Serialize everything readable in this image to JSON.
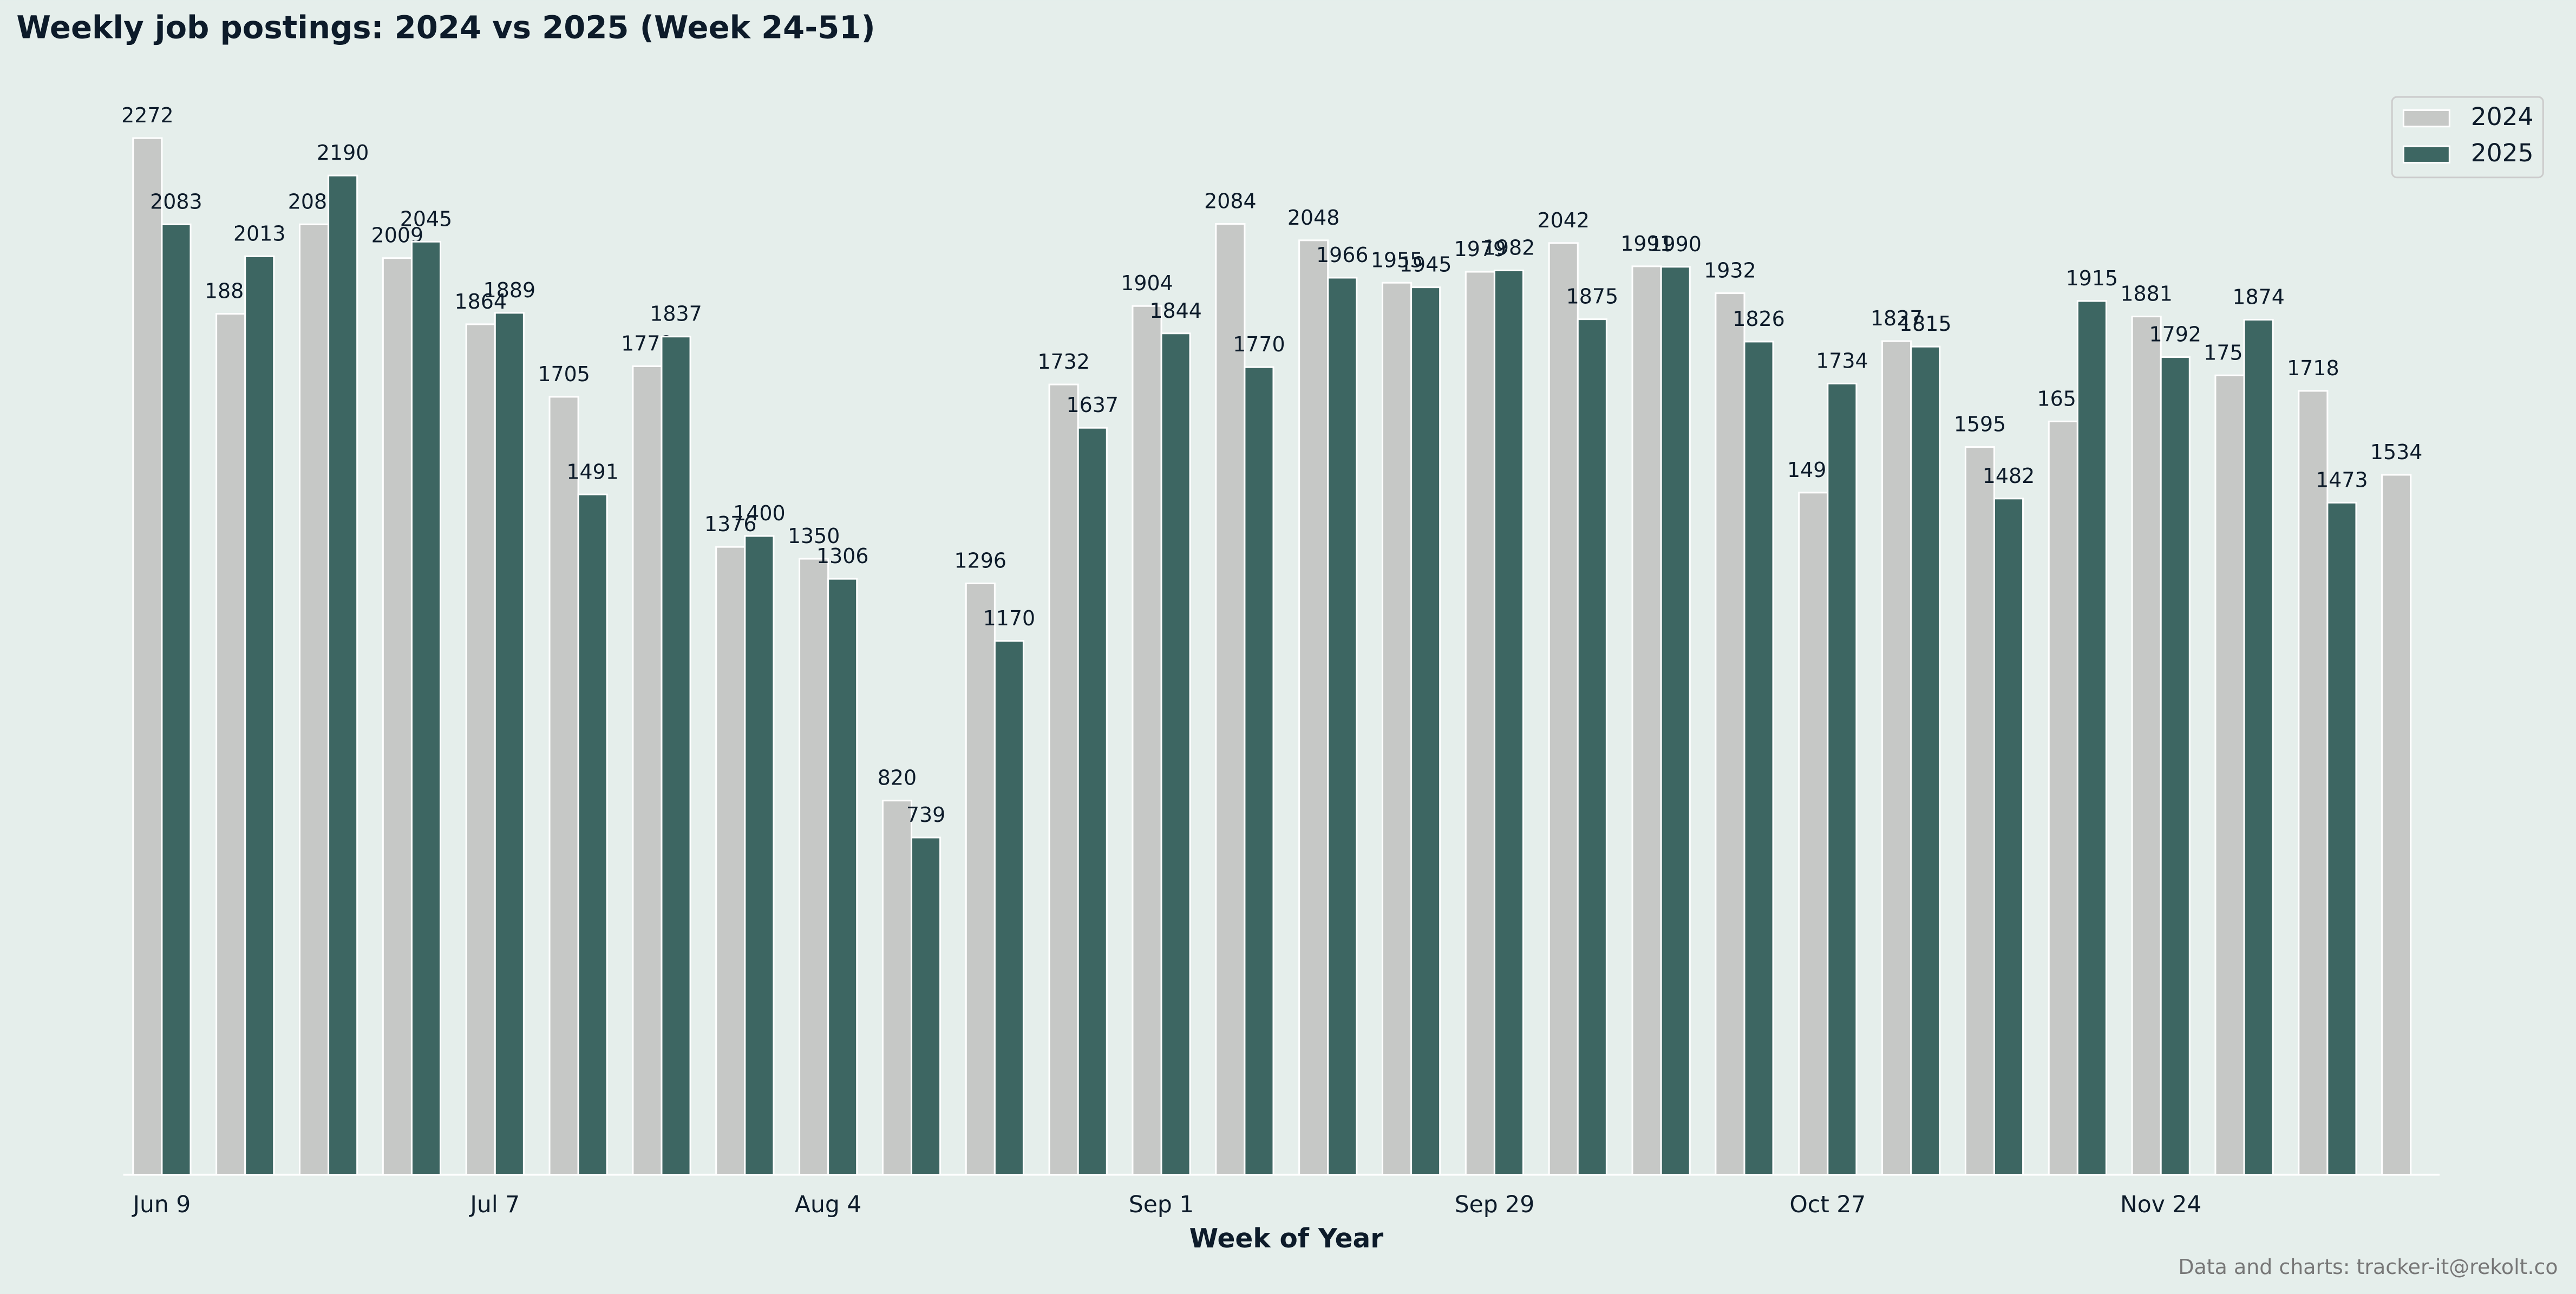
{
  "chart_data": {
    "type": "bar",
    "title": "Weekly job postings: 2024 vs 2025 (Week 24-51)",
    "x_label": "Week of Year",
    "footer": "Data and charts: tracker-it@rekolt.co",
    "categories": [
      "Jun 9",
      null,
      null,
      null,
      "Jul 7",
      null,
      null,
      null,
      "Aug 4",
      null,
      null,
      null,
      "Sep 1",
      null,
      null,
      null,
      "Sep 29",
      null,
      null,
      null,
      "Oct 27",
      null,
      null,
      null,
      "Nov 24",
      null,
      null,
      null
    ],
    "series": [
      {
        "name": "2024",
        "color": "#c6c8c6",
        "values": [
          2272,
          1887,
          2083,
          2009,
          1864,
          1705,
          1772,
          1376,
          1350,
          820,
          1296,
          1732,
          1904,
          2084,
          2048,
          1955,
          1979,
          2042,
          1991,
          1932,
          1495,
          1827,
          1595,
          1651,
          1881,
          1752,
          1718,
          1534
        ]
      },
      {
        "name": "2025",
        "color": "#3d6662",
        "values": [
          2083,
          2013,
          2190,
          2045,
          1889,
          1491,
          1837,
          1400,
          1306,
          739,
          1170,
          1637,
          1844,
          1770,
          1966,
          1945,
          1982,
          1875,
          1990,
          1826,
          1734,
          1815,
          1482,
          1915,
          1792,
          1874,
          1473,
          null
        ]
      }
    ],
    "ylim": [
      0,
      2400
    ],
    "legend": "upper right"
  }
}
